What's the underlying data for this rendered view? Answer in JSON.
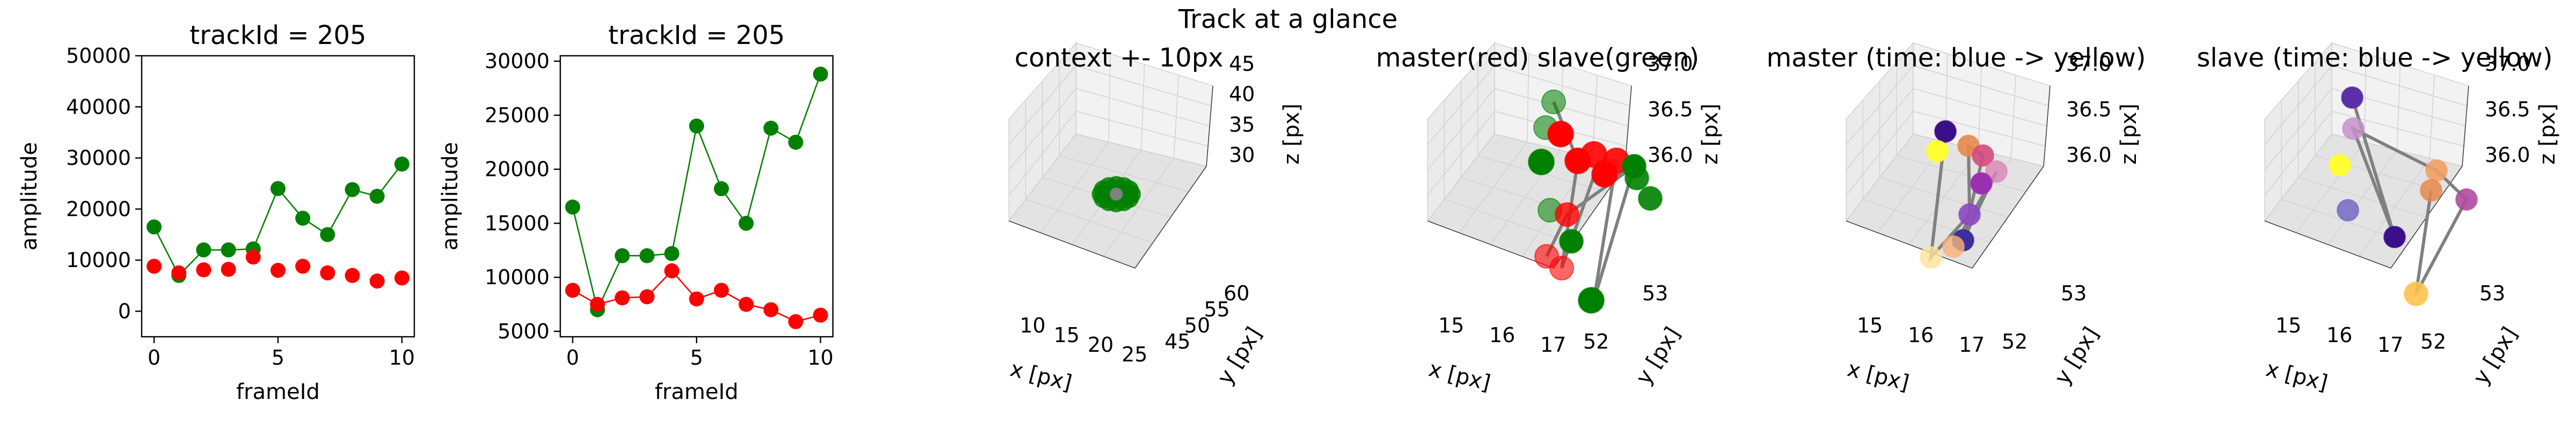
{
  "suptitle": "Track at a glance",
  "colors": {
    "green": "#008000",
    "red": "#ff0000",
    "path_gray": "#808080",
    "pane_left": "#ebebeb",
    "pane_right": "#f2f2f2",
    "pane_floor": "#e3e3e3"
  },
  "chart_data": [
    {
      "type": "line",
      "title": "trackId = 205",
      "xlabel": "frameId",
      "ylabel": "amplitude",
      "x": [
        0,
        1,
        2,
        3,
        4,
        5,
        6,
        7,
        8,
        9,
        10
      ],
      "xlim": [
        -0.5,
        10.5
      ],
      "ylim": [
        -5000,
        50000
      ],
      "xticks": [
        0,
        5,
        10
      ],
      "yticks": [
        0,
        10000,
        20000,
        30000,
        40000,
        50000
      ],
      "series": [
        {
          "color": "#008000",
          "line": true,
          "values": [
            16500,
            7000,
            12000,
            12000,
            12200,
            24000,
            18200,
            15000,
            23800,
            22500,
            28800
          ]
        },
        {
          "color": "#ff0000",
          "line": false,
          "values": [
            8800,
            7500,
            8100,
            8200,
            10600,
            8000,
            8800,
            7500,
            7000,
            5900,
            6500
          ]
        }
      ]
    },
    {
      "type": "line",
      "title": "trackId = 205",
      "xlabel": "frameId",
      "ylabel": "amplitude",
      "x": [
        0,
        1,
        2,
        3,
        4,
        5,
        6,
        7,
        8,
        9,
        10
      ],
      "xlim": [
        -0.5,
        10.5
      ],
      "ylim": [
        4500,
        30500
      ],
      "xticks": [
        0,
        5,
        10
      ],
      "yticks": [
        5000,
        10000,
        15000,
        20000,
        25000,
        30000
      ],
      "series": [
        {
          "color": "#008000",
          "line": true,
          "values": [
            16500,
            7000,
            12000,
            12000,
            12200,
            24000,
            18200,
            15000,
            23800,
            22500,
            28800
          ]
        },
        {
          "color": "#ff0000",
          "line": true,
          "values": [
            8800,
            7500,
            8100,
            8200,
            10600,
            8000,
            8800,
            7500,
            7000,
            5900,
            6500
          ]
        }
      ]
    },
    {
      "type": "scatter3d",
      "title": "context +- 10px",
      "xlabel": "x [px]",
      "ylabel": "y [px]",
      "zlabel": "z [px]",
      "xticks": [
        "10",
        "15",
        "20",
        "25"
      ],
      "yticks": [
        "45",
        "50",
        "55",
        "60"
      ],
      "zticks": [
        "30",
        "35",
        "40",
        "45"
      ]
    },
    {
      "type": "scatter3d",
      "title": "master(red) slave(green)",
      "xlabel": "x [px]",
      "ylabel": "y [px]",
      "zlabel": "z [px]",
      "xticks": [
        "15",
        "16",
        "17"
      ],
      "yticks": [
        "52",
        "53"
      ],
      "zticks": [
        "36.0",
        "36.5",
        "37.0"
      ]
    },
    {
      "type": "scatter3d",
      "title": "master (time: blue -> yellow)",
      "xlabel": "x [px]",
      "ylabel": "y [px]",
      "zlabel": "z [px]",
      "xticks": [
        "15",
        "16",
        "17"
      ],
      "yticks": [
        "52",
        "53"
      ],
      "zticks": [
        "36.0",
        "36.5",
        "37.0"
      ]
    },
    {
      "type": "scatter3d",
      "title": "slave (time: blue -> yellow)",
      "xlabel": "x [px]",
      "ylabel": "y [px]",
      "zlabel": "z [px]",
      "xticks": [
        "15",
        "16",
        "17"
      ],
      "yticks": [
        "52",
        "53"
      ],
      "zticks": [
        "36.0",
        "36.5",
        "37.0"
      ]
    }
  ]
}
